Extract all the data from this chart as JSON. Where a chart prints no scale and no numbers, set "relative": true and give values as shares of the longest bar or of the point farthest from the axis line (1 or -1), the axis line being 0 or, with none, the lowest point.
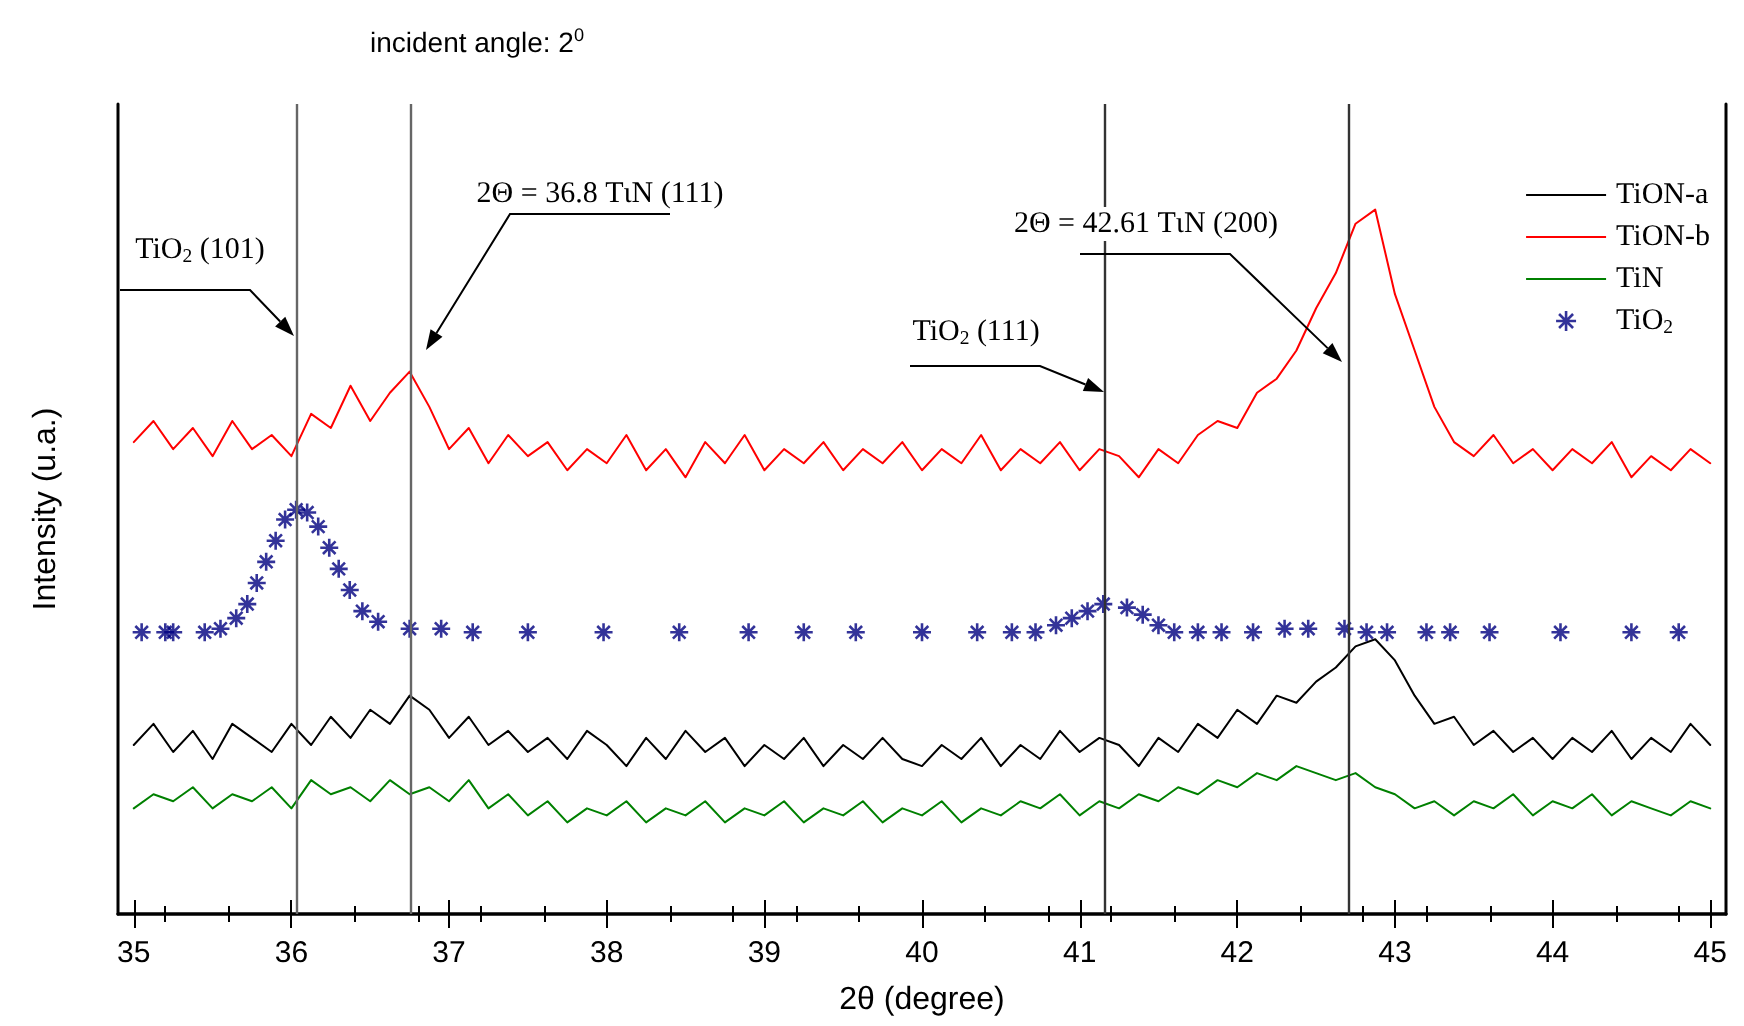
{
  "chart_data": {
    "type": "line",
    "title": "incident angle: 2$^{0}$",
    "xlabel": "2θ (degree)",
    "ylabel": "Intensity (u.a.)",
    "relative": true,
    "x": [
      35,
      35.125,
      35.25,
      35.375,
      35.5,
      35.625,
      35.75,
      35.875,
      36,
      36.125,
      36.25,
      36.375,
      36.5,
      36.625,
      36.75,
      36.875,
      37,
      37.125,
      37.25,
      37.375,
      37.5,
      37.625,
      37.75,
      37.875,
      38,
      38.125,
      38.25,
      38.375,
      38.5,
      38.625,
      38.75,
      38.875,
      39,
      39.125,
      39.25,
      39.375,
      39.5,
      39.625,
      39.75,
      39.875,
      40,
      40.125,
      40.25,
      40.375,
      40.5,
      40.625,
      40.75,
      40.875,
      41,
      41.125,
      41.25,
      41.375,
      41.5,
      41.625,
      41.75,
      41.875,
      42,
      42.125,
      42.25,
      42.375,
      42.5,
      42.625,
      42.75,
      42.875,
      43,
      43.125,
      43.25,
      43.375,
      43.5,
      43.625,
      43.75,
      43.875,
      44,
      44.125,
      44.25,
      44.375,
      44.5,
      44.625,
      44.75,
      44.875,
      45
    ],
    "xlim": [
      34.9,
      45.1
    ],
    "xticks": [
      35,
      36,
      37,
      38,
      39,
      40,
      41,
      42,
      43,
      44,
      45
    ],
    "tick_labels": "x",
    "grid": false,
    "legend": "top right",
    "series": [
      {
        "name": "TiON-a",
        "color": "#000000",
        "values": [
          0.24,
          0.27,
          0.23,
          0.26,
          0.22,
          0.27,
          0.25,
          0.23,
          0.27,
          0.24,
          0.28,
          0.25,
          0.29,
          0.27,
          0.31,
          0.29,
          0.25,
          0.28,
          0.24,
          0.26,
          0.23,
          0.25,
          0.22,
          0.26,
          0.24,
          0.21,
          0.25,
          0.22,
          0.26,
          0.23,
          0.25,
          0.21,
          0.24,
          0.22,
          0.25,
          0.21,
          0.24,
          0.22,
          0.25,
          0.22,
          0.21,
          0.24,
          0.22,
          0.25,
          0.21,
          0.24,
          0.22,
          0.26,
          0.23,
          0.25,
          0.24,
          0.21,
          0.25,
          0.23,
          0.27,
          0.25,
          0.29,
          0.27,
          0.31,
          0.3,
          0.33,
          0.35,
          0.38,
          0.39,
          0.36,
          0.31,
          0.27,
          0.28,
          0.24,
          0.26,
          0.23,
          0.25,
          0.22,
          0.25,
          0.23,
          0.26,
          0.22,
          0.25,
          0.23,
          0.27,
          0.24
        ]
      },
      {
        "name": "TiON-b",
        "color": "#ff0000",
        "values": [
          0.67,
          0.7,
          0.66,
          0.69,
          0.65,
          0.7,
          0.66,
          0.68,
          0.65,
          0.71,
          0.69,
          0.75,
          0.7,
          0.74,
          0.77,
          0.72,
          0.66,
          0.69,
          0.64,
          0.68,
          0.65,
          0.67,
          0.63,
          0.66,
          0.64,
          0.68,
          0.63,
          0.66,
          0.62,
          0.67,
          0.64,
          0.68,
          0.63,
          0.66,
          0.64,
          0.67,
          0.63,
          0.66,
          0.64,
          0.67,
          0.63,
          0.66,
          0.64,
          0.68,
          0.63,
          0.66,
          0.64,
          0.67,
          0.63,
          0.66,
          0.65,
          0.62,
          0.66,
          0.64,
          0.68,
          0.7,
          0.69,
          0.74,
          0.76,
          0.8,
          0.86,
          0.91,
          0.98,
          1.0,
          0.88,
          0.8,
          0.72,
          0.67,
          0.65,
          0.68,
          0.64,
          0.66,
          0.63,
          0.66,
          0.64,
          0.67,
          0.62,
          0.65,
          0.63,
          0.66,
          0.64
        ]
      },
      {
        "name": "TiN",
        "color": "#008000",
        "values": [
          0.15,
          0.17,
          0.16,
          0.18,
          0.15,
          0.17,
          0.16,
          0.18,
          0.15,
          0.19,
          0.17,
          0.18,
          0.16,
          0.19,
          0.17,
          0.18,
          0.16,
          0.19,
          0.15,
          0.17,
          0.14,
          0.16,
          0.13,
          0.15,
          0.14,
          0.16,
          0.13,
          0.15,
          0.14,
          0.16,
          0.13,
          0.15,
          0.14,
          0.16,
          0.13,
          0.15,
          0.14,
          0.16,
          0.13,
          0.15,
          0.14,
          0.16,
          0.13,
          0.15,
          0.14,
          0.16,
          0.15,
          0.17,
          0.14,
          0.16,
          0.15,
          0.17,
          0.16,
          0.18,
          0.17,
          0.19,
          0.18,
          0.2,
          0.19,
          0.21,
          0.2,
          0.19,
          0.2,
          0.18,
          0.17,
          0.15,
          0.16,
          0.14,
          0.16,
          0.15,
          0.17,
          0.14,
          0.16,
          0.15,
          0.17,
          0.14,
          0.16,
          0.15,
          0.14,
          0.16,
          0.15
        ]
      },
      {
        "name": "TiO$_{2}$",
        "type": "scatter",
        "marker": "cross",
        "color": "#000080",
        "x": [
          35.05,
          35.2,
          35.25,
          35.45,
          35.55,
          35.65,
          35.72,
          35.78,
          35.84,
          35.9,
          35.96,
          36.03,
          36.1,
          36.17,
          36.24,
          36.3,
          36.37,
          36.45,
          36.55,
          36.75,
          36.95,
          37.15,
          37.5,
          37.98,
          38.46,
          38.9,
          39.25,
          39.58,
          40.0,
          40.35,
          40.57,
          40.72,
          40.85,
          40.95,
          41.05,
          41.15,
          41.3,
          41.4,
          41.5,
          41.6,
          41.75,
          41.9,
          42.1,
          42.3,
          42.45,
          42.68,
          42.82,
          42.95,
          43.2,
          43.35,
          43.6,
          44.05,
          44.5,
          44.8
        ],
        "values": [
          0.4,
          0.4,
          0.4,
          0.4,
          0.405,
          0.42,
          0.44,
          0.47,
          0.5,
          0.53,
          0.56,
          0.574,
          0.57,
          0.55,
          0.52,
          0.49,
          0.46,
          0.43,
          0.415,
          0.405,
          0.405,
          0.4,
          0.4,
          0.4,
          0.4,
          0.4,
          0.4,
          0.4,
          0.4,
          0.4,
          0.4,
          0.4,
          0.41,
          0.42,
          0.43,
          0.44,
          0.435,
          0.425,
          0.41,
          0.4,
          0.4,
          0.4,
          0.4,
          0.405,
          0.405,
          0.405,
          0.4,
          0.4,
          0.4,
          0.4,
          0.4,
          0.4,
          0.4,
          0.4
        ]
      }
    ],
    "ref_lines": [
      {
        "axis": "x",
        "value": 36.03,
        "color": "#666666"
      },
      {
        "axis": "x",
        "value": 36.75,
        "color": "#666666"
      },
      {
        "axis": "x",
        "value": 41.16,
        "color": "#333333"
      },
      {
        "axis": "x",
        "value": 42.7,
        "color": "#333333"
      }
    ],
    "annotations": [
      "TiO$_{2}$ (101)",
      "2Θ = 36.8 TιN (111)",
      "TiO$_{2}$ (111)",
      "2Θ = 42.61 TιN (200)"
    ]
  }
}
